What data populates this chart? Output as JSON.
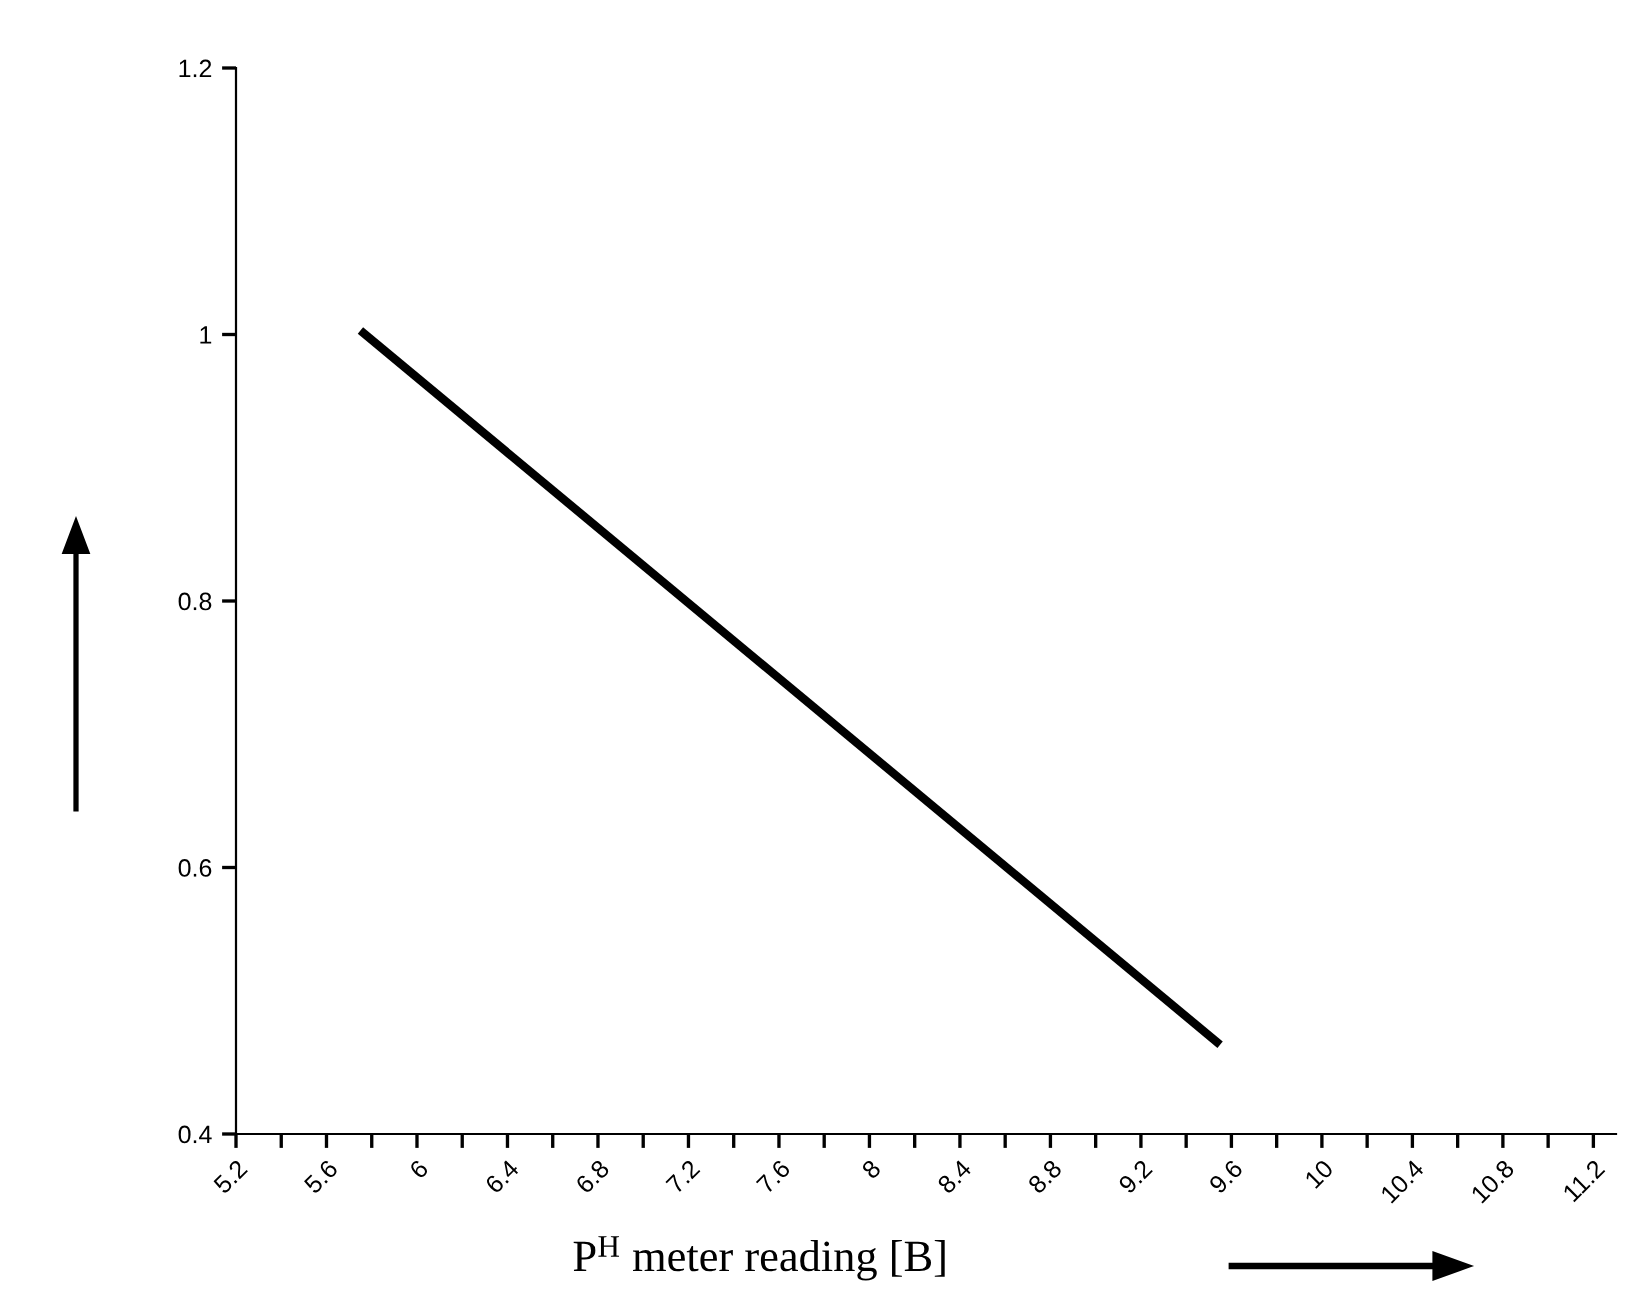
{
  "chart_data": {
    "type": "line",
    "xlabel": "P$^{H}$ meter reading [B]",
    "x": [
      5.75,
      9.55
    ],
    "series": [
      {
        "color": "#000000",
        "values": [
          1.003,
          0.467
        ]
      }
    ],
    "xlim": [
      5.2,
      11.3
    ],
    "xticks": [
      5.2,
      {
        "value": 5.4,
        "label": null
      },
      5.6,
      {
        "value": 5.8,
        "label": null
      },
      6,
      {
        "value": 6.2,
        "label": null
      },
      6.4,
      {
        "value": 6.6,
        "label": null
      },
      6.8,
      {
        "value": 7.0,
        "label": null
      },
      7.2,
      {
        "value": 7.4,
        "label": null
      },
      7.6,
      {
        "value": 7.8,
        "label": null
      },
      8,
      {
        "value": 8.2,
        "label": null
      },
      8.4,
      {
        "value": 8.6,
        "label": null
      },
      8.8,
      {
        "value": 9.0,
        "label": null
      },
      9.2,
      {
        "value": 9.4,
        "label": null
      },
      9.6,
      {
        "value": 9.8,
        "label": null
      },
      10,
      {
        "value": 10.2,
        "label": null
      },
      10.4,
      {
        "value": 10.6,
        "label": null
      },
      10.8,
      {
        "value": 11.0,
        "label": null
      },
      11.2
    ],
    "ylim": [
      0.4,
      1.2
    ],
    "yticks": [
      0.4,
      0.6,
      0.8,
      1,
      1.2
    ],
    "grid": false,
    "legend": false,
    "marker": "none",
    "line_style": "solid"
  }
}
